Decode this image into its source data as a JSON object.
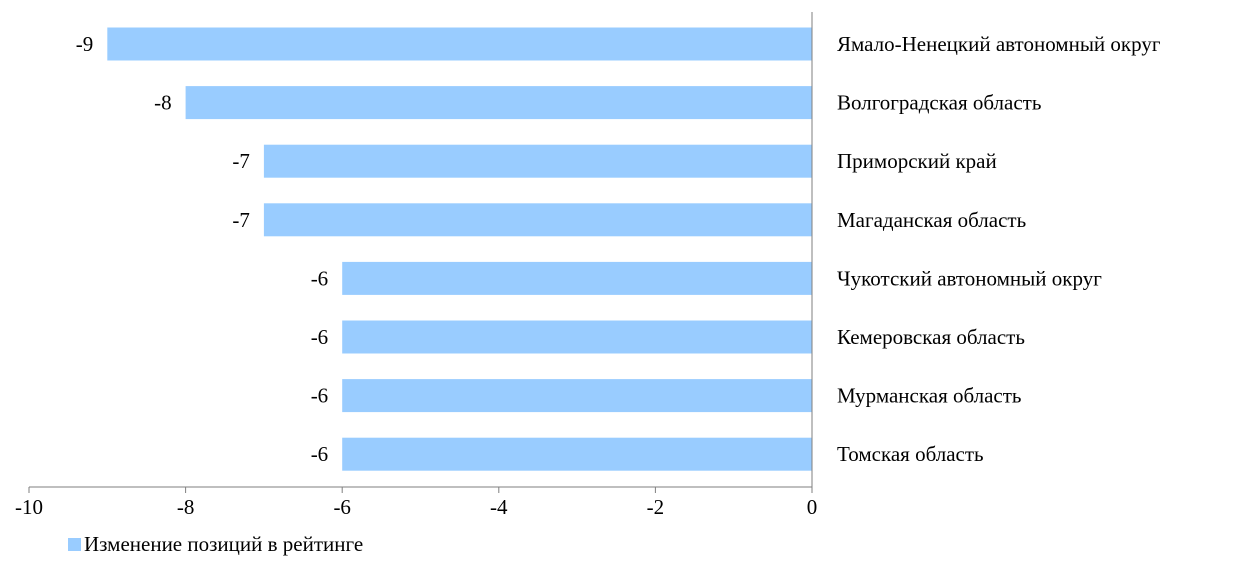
{
  "chart_data": {
    "type": "bar",
    "orientation": "horizontal",
    "categories": [
      "Ямало-Ненецкий автономный округ",
      "Волгоградская область",
      "Приморский край",
      "Магаданская область",
      "Чукотский автономный округ",
      "Кемеровская область",
      "Мурманская область",
      "Томская область"
    ],
    "series": [
      {
        "name": "Изменение позиций в рейтинге",
        "values": [
          -9,
          -8,
          -7,
          -7,
          -6,
          -6,
          -6,
          -6
        ],
        "color": "#99ccff"
      }
    ],
    "data_labels": [
      "-9",
      "-8",
      "-7",
      "-7",
      "-6",
      "-6",
      "-6",
      "-6"
    ],
    "xlim": [
      -10,
      0
    ],
    "x_ticks": [
      -10,
      -8,
      -6,
      -4,
      -2,
      0
    ],
    "x_tick_labels": [
      "-10",
      "-8",
      "-6",
      "-4",
      "-2",
      "0"
    ],
    "grid": false,
    "legend_position": "bottom-left",
    "axis_color": "#7f7f7f"
  },
  "legend": {
    "label": "Изменение позиций в рейтинге"
  }
}
